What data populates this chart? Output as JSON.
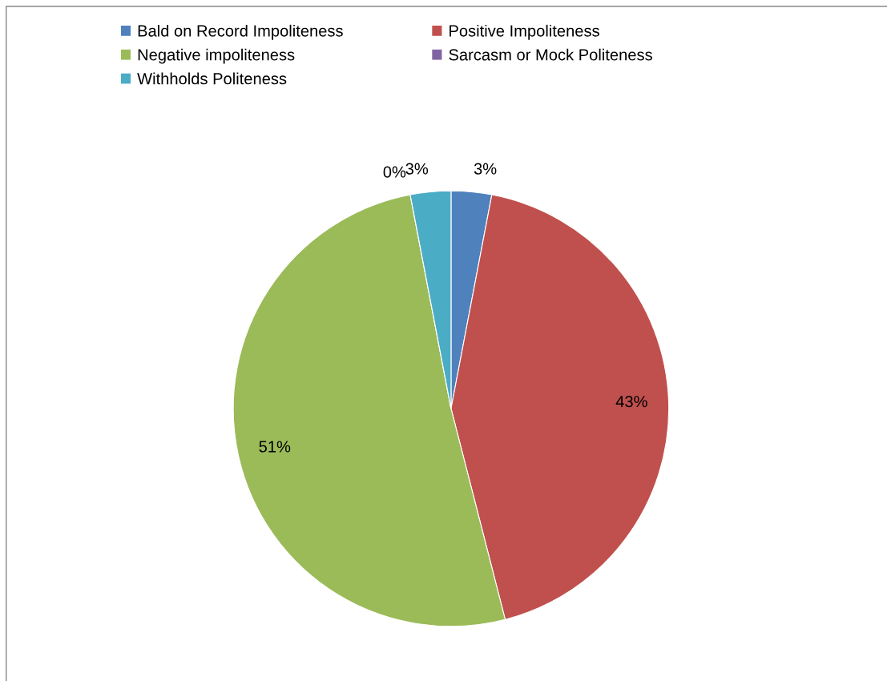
{
  "chart_data": {
    "type": "pie",
    "categories": [
      "Bald on Record Impoliteness",
      "Positive Impoliteness",
      "Negative impoliteness",
      "Sarcasm or Mock Politeness",
      "Withholds Politeness"
    ],
    "values": [
      3,
      43,
      51,
      0,
      3
    ],
    "colors": [
      "#4f81bd",
      "#c0504d",
      "#9bbb59",
      "#8064a2",
      "#4bacc6"
    ],
    "value_labels": [
      "3%",
      "43%",
      "51%",
      "0%",
      "3%"
    ],
    "legend": "top"
  }
}
